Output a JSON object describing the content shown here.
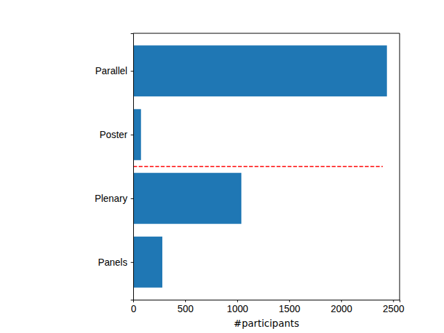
{
  "chart_data": {
    "type": "bar",
    "orientation": "horizontal",
    "categories": [
      "Parallel",
      "Poster",
      "Plenary",
      "Panels"
    ],
    "values": [
      2440,
      75,
      1040,
      280
    ],
    "color": "#1f77b4",
    "x_label": "#participants",
    "xlim": [
      0,
      2562
    ],
    "xticks": [
      0,
      500,
      1000,
      1500,
      2000,
      2500
    ],
    "grid": false,
    "reference_line": {
      "between": [
        "Poster",
        "Plenary"
      ],
      "x": [
        0,
        2400
      ],
      "color": "#ff0000",
      "line_style": "dashed"
    }
  }
}
